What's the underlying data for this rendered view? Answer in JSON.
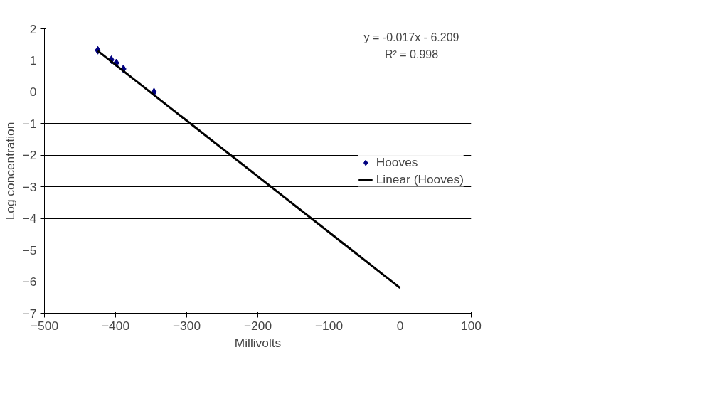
{
  "chart_data": {
    "type": "scatter",
    "xlabel": "Millivolts",
    "ylabel": "Log concentration",
    "annotations": [
      "y = -0.017x - 6.209",
      "R² = 0.998"
    ],
    "xlim": [
      -500,
      100
    ],
    "xticks": [
      -500,
      -400,
      -300,
      -200,
      -100,
      0,
      100
    ],
    "ylim": [
      -7,
      2
    ],
    "yticks": [
      -7,
      -6,
      -5,
      -4,
      -3,
      -2,
      -1,
      0,
      1,
      2
    ],
    "grid": "y",
    "legend": "right",
    "series": [
      {
        "name": "Hooves",
        "type": "scatter",
        "marker": "diamond",
        "color": "#000080",
        "x": [
          -425,
          -406,
          -399,
          -389,
          -346
        ],
        "values": [
          1.32,
          1.02,
          0.92,
          0.73,
          0.0
        ]
      },
      {
        "name": "Linear (Hooves)",
        "type": "line",
        "marker": "none",
        "color": "#000000",
        "x": [
          -425,
          0
        ],
        "values": [
          1.3,
          -6.2
        ]
      }
    ]
  }
}
